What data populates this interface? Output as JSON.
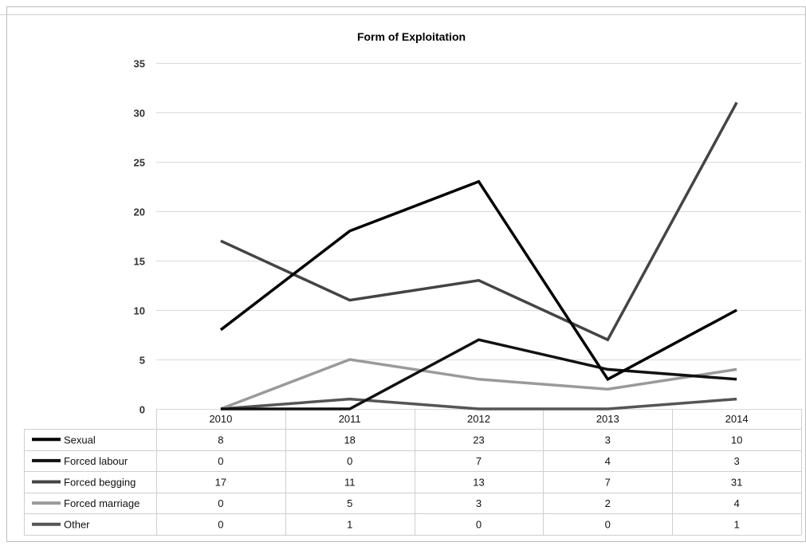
{
  "chart_data": {
    "type": "line",
    "title": "Form of Exploitation",
    "xlabel": "",
    "ylabel": "",
    "categories": [
      "2010",
      "2011",
      "2012",
      "2013",
      "2014"
    ],
    "ylim": [
      0,
      35
    ],
    "yticks": [
      0,
      5,
      10,
      15,
      20,
      25,
      30,
      35
    ],
    "grid": true,
    "legend_placement": "data table below plot",
    "series": [
      {
        "name": "Sexual",
        "values": [
          8,
          18,
          23,
          3,
          10
        ],
        "color": "#000000"
      },
      {
        "name": "Forced labour",
        "values": [
          0,
          0,
          7,
          4,
          3
        ],
        "color": "#111111"
      },
      {
        "name": "Forced begging",
        "values": [
          17,
          11,
          13,
          7,
          31
        ],
        "color": "#444444"
      },
      {
        "name": "Forced marriage",
        "values": [
          0,
          5,
          3,
          2,
          4
        ],
        "color": "#9a9a9a"
      },
      {
        "name": "Other",
        "values": [
          0,
          1,
          0,
          0,
          1
        ],
        "color": "#555555"
      }
    ]
  }
}
